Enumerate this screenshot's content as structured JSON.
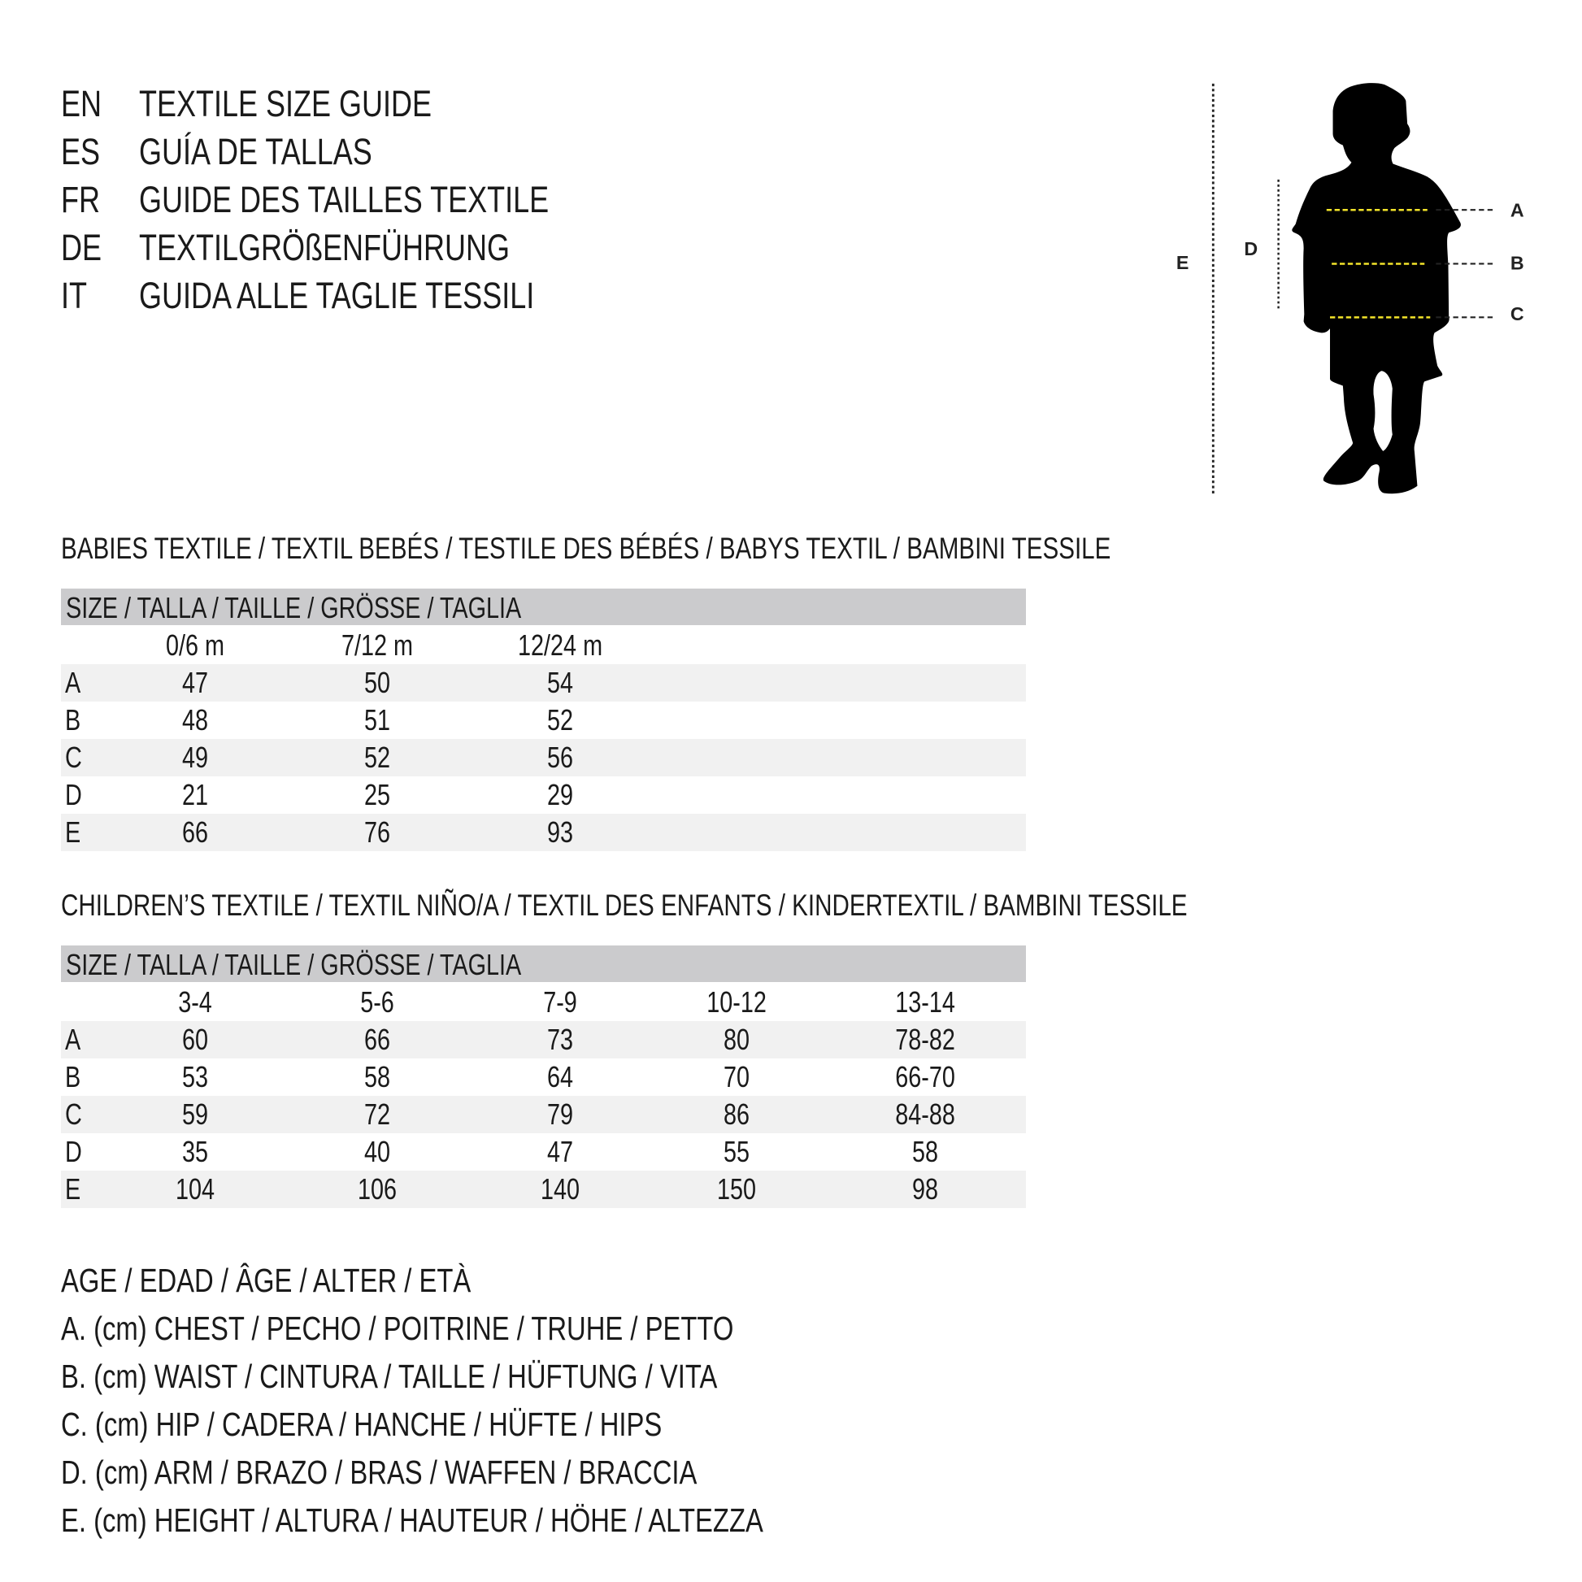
{
  "titles": [
    {
      "code": "EN",
      "text": "TEXTILE SIZE GUIDE"
    },
    {
      "code": "ES",
      "text": "GUÍA DE TALLAS"
    },
    {
      "code": "FR",
      "text": "GUIDE DES TAILLES TEXTILE"
    },
    {
      "code": "DE",
      "text": "TEXTILGRÖßENFÜHRUNG"
    },
    {
      "code": "IT",
      "text": "GUIDA ALLE TAGLIE TESSILI"
    }
  ],
  "babies": {
    "heading": "BABIES TEXTILE / TEXTIL BEBÉS / TESTILE DES BÉBÉS / BABYS TEXTIL / BAMBINI TESSILE",
    "size_header": "SIZE / TALLA / TAILLE / GRÖSSE / TAGLIA",
    "columns": [
      "0/6 m",
      "7/12 m",
      "12/24 m"
    ],
    "rows": [
      {
        "label": "A",
        "values": [
          "47",
          "50",
          "54"
        ]
      },
      {
        "label": "B",
        "values": [
          "48",
          "51",
          "52"
        ]
      },
      {
        "label": "C",
        "values": [
          "49",
          "52",
          "56"
        ]
      },
      {
        "label": "D",
        "values": [
          "21",
          "25",
          "29"
        ]
      },
      {
        "label": "E",
        "values": [
          "66",
          "76",
          "93"
        ]
      }
    ]
  },
  "children": {
    "heading": "CHILDREN’S TEXTILE / TEXTIL NIÑO/A / TEXTIL DES ENFANTS / KINDERTEXTIL / BAMBINI TESSILE",
    "size_header": "SIZE / TALLA / TAILLE / GRÖSSE / TAGLIA",
    "columns": [
      "3-4",
      "5-6",
      "7-9",
      "10-12",
      "13-14"
    ],
    "rows": [
      {
        "label": "A",
        "values": [
          "60",
          "66",
          "73",
          "80",
          "78-82"
        ]
      },
      {
        "label": "B",
        "values": [
          "53",
          "58",
          "64",
          "70",
          "66-70"
        ]
      },
      {
        "label": "C",
        "values": [
          "59",
          "72",
          "79",
          "86",
          "84-88"
        ]
      },
      {
        "label": "D",
        "values": [
          "35",
          "40",
          "47",
          "55",
          "58"
        ]
      },
      {
        "label": "E",
        "values": [
          "104",
          "106",
          "140",
          "150",
          "98"
        ]
      }
    ]
  },
  "legend": [
    "AGE / EDAD / ÂGE / ALTER / ETÀ",
    "A. (cm) CHEST / PECHO / POITRINE / TRUHE / PETTO",
    "B. (cm) WAIST / CINTURA / TAILLE / HÜFTUNG / VITA",
    "C. (cm) HIP / CADERA / HANCHE / HÜFTE / HIPS",
    "D. (cm) ARM / BRAZO / BRAS / WAFFEN / BRACCIA",
    "E. (cm) HEIGHT / ALTURA / HAUTEUR / HÖHE / ALTEZZA"
  ],
  "figure": {
    "labels": {
      "A": "A",
      "B": "B",
      "C": "C",
      "D": "D",
      "E": "E"
    },
    "silhouette_color": "#000000",
    "measure_line_color": "#f2e32a",
    "header_bar_color": "#cbcbcd",
    "row_shade_color": "#f1f1f1"
  }
}
